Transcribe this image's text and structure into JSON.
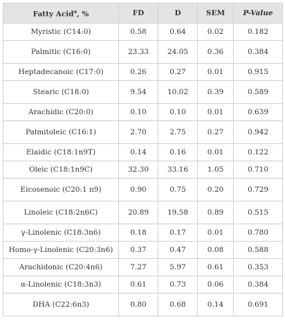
{
  "table": {
    "headers": {
      "fatty_acid": "Fatty Acid",
      "fatty_acid_sup": "a",
      "fatty_acid_unit": ", %",
      "fd": "FD",
      "d": "D",
      "sem": "SEM",
      "pvalue": "P-Value"
    },
    "rows": [
      {
        "name": "Myristic (C14:0)",
        "fd": "0.58",
        "d": "0.64",
        "sem": "0.02",
        "p": "0.182",
        "tall": false
      },
      {
        "name": "Palmitic (C16:0)",
        "fd": "23.33",
        "d": "24.05",
        "sem": "0.36",
        "p": "0.384",
        "tall": true
      },
      {
        "name": "Heptadecanoic (C17:0)",
        "fd": "0.26",
        "d": "0.27",
        "sem": "0.01",
        "p": "0.915",
        "tall": false
      },
      {
        "name": "Stearic (C18:0)",
        "fd": "9.54",
        "d": "10.02",
        "sem": "0.39",
        "p": "0.589",
        "tall": true
      },
      {
        "name": "Arachidic (C20:0)",
        "fd": "0.10",
        "d": "0.10",
        "sem": "0.01",
        "p": "0.639",
        "tall": false
      },
      {
        "name": "Palmitoleic (C16:1)",
        "fd": "2.70",
        "d": "2.75",
        "sem": "0.27",
        "p": "0.942",
        "tall": true
      },
      {
        "name": "Elaidic (C18:1n9T)",
        "fd": "0.14",
        "d": "0.16",
        "sem": "0.01",
        "p": "0.122",
        "tall": false
      },
      {
        "name": "Oleic (C18:1n9C)",
        "fd": "32.30",
        "d": "33.16",
        "sem": "1.05",
        "p": "0.710",
        "tall": false
      },
      {
        "name": "Eicosenoic (C20:1 n9)",
        "fd": "0.90",
        "d": "0.75",
        "sem": "0.20",
        "p": "0.729",
        "tall": true
      },
      {
        "name": "Linoleic (C18:2n6C)",
        "fd": "20.89",
        "d": "19.58",
        "sem": "0.89",
        "p": "0.515",
        "tall": true
      },
      {
        "name": "γ-Linolenic (C18:3n6)",
        "fd": "0.18",
        "d": "0.17",
        "sem": "0.01",
        "p": "0.780",
        "tall": false
      },
      {
        "name": "Homo-γ-Linolenic (C20:3n6)",
        "fd": "0.37",
        "d": "0.47",
        "sem": "0.08",
        "p": "0.588",
        "tall": false
      },
      {
        "name": "Arachidonic (C20:4n6)",
        "fd": "7.27",
        "d": "5.97",
        "sem": "0.61",
        "p": "0.353",
        "tall": false
      },
      {
        "name": "α-Linolenic (C18:3n3)",
        "fd": "0.61",
        "d": "0.73",
        "sem": "0.06",
        "p": "0.384",
        "tall": false
      },
      {
        "name": "DHA (C22:6n3)",
        "fd": "0.80",
        "d": "0.68",
        "sem": "0.14",
        "p": "0.691",
        "tall": true
      }
    ]
  }
}
